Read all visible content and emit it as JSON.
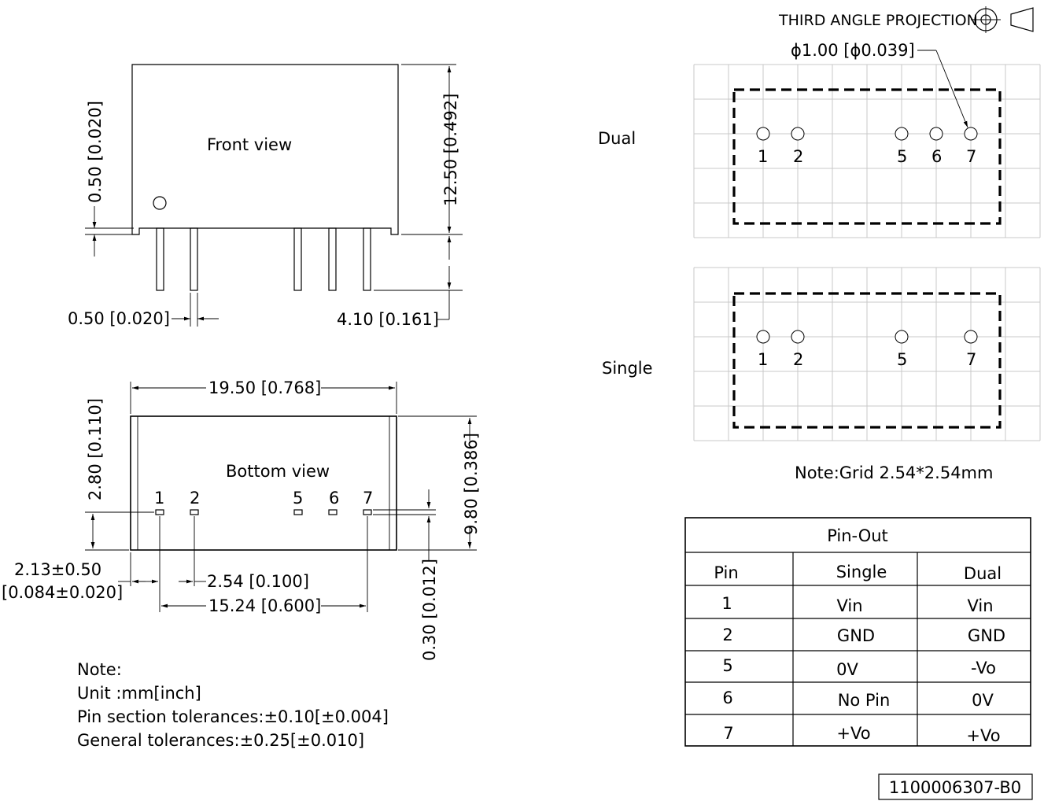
{
  "projection": {
    "label": "THIRD ANGLE PROJECTION"
  },
  "front_view": {
    "title": "Front view",
    "dim_standoff": "0.50 [0.020]",
    "dim_height": "12.50 [0.492]",
    "dim_pin_width": "0.50 [0.020]",
    "dim_pin_length": "4.10 [0.161]"
  },
  "bottom_view": {
    "title": "Bottom view",
    "pins": [
      "1",
      "2",
      "5",
      "6",
      "7"
    ],
    "dim_length": "19.50 [0.768]",
    "dim_pin_row": "2.80 [0.110]",
    "dim_width": "9.80 [0.386]",
    "dim_edge_1": "2.13±0.50",
    "dim_edge_2": "[0.084±0.020]",
    "dim_pitch": "2.54 [0.100]",
    "dim_span": "15.24 [0.600]",
    "dim_pin_thk": "0.30 [0.012]"
  },
  "footprint": {
    "hole_dim": "ϕ1.00 [ϕ0.039]",
    "dual": {
      "label": "Dual",
      "pins": [
        "1",
        "2",
        "5",
        "6",
        "7"
      ]
    },
    "single": {
      "label": "Single",
      "pins": [
        "1",
        "2",
        "5",
        "7"
      ]
    },
    "grid_note": "Note:Grid 2.54*2.54mm"
  },
  "notes": {
    "title": "Note:",
    "unit": "Unit :mm[inch]",
    "pin_tol": "Pin section tolerances:±0.10[±0.004]",
    "gen_tol": "General tolerances:±0.25[±0.010]"
  },
  "pinout": {
    "title": "Pin-Out",
    "headers": [
      "Pin",
      "Single",
      "Dual"
    ],
    "rows": [
      [
        "1",
        "Vin",
        "Vin"
      ],
      [
        "2",
        "GND",
        "GND"
      ],
      [
        "5",
        "0V",
        "-Vo"
      ],
      [
        "6",
        "No Pin",
        "0V"
      ],
      [
        "7",
        "+Vo",
        "+Vo"
      ]
    ]
  },
  "doc_number": "1100006307-B0"
}
